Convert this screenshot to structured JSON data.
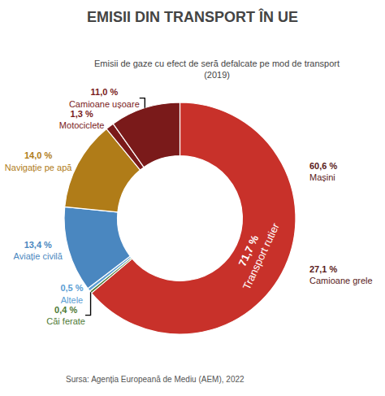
{
  "chart_data": {
    "type": "pie",
    "title": "EMISII DIN TRANSPORT ÎN UE",
    "subtitle": "Emisii de gaze cu efect de seră defalcate pe mod de transport\n(2019)",
    "source": "Sursa: Agenția Europeană de Mediu (AEM), 2022",
    "categories": [
      "Transport rutier",
      "Căi ferate",
      "Altele",
      "Aviație civilă",
      "Navigație pe apă",
      "Motociclete",
      "Camioane ușoare"
    ],
    "values": [
      71.7,
      0.4,
      0.5,
      13.4,
      14.0,
      1.3,
      11.0
    ],
    "value_labels": [
      "71,7 %",
      "0,4 %",
      "0,5 %",
      "13,4 %",
      "14,0 %",
      "1,3 %",
      "11,0 %"
    ],
    "colors": [
      "#c8312a",
      "#4e7a35",
      "#5a9ed4",
      "#4a87c0",
      "#b07c18",
      "#7a1a1a",
      "#7a1a1a"
    ],
    "data_labels": true,
    "annotations": [
      {
        "value": 60.6,
        "label": "60,6 %",
        "text": "Mașini",
        "color": "#5a1a1a"
      },
      {
        "value": 27.1,
        "label": "27,1 %",
        "text": "Camioane grele",
        "color": "#5a1a1a"
      }
    ]
  }
}
